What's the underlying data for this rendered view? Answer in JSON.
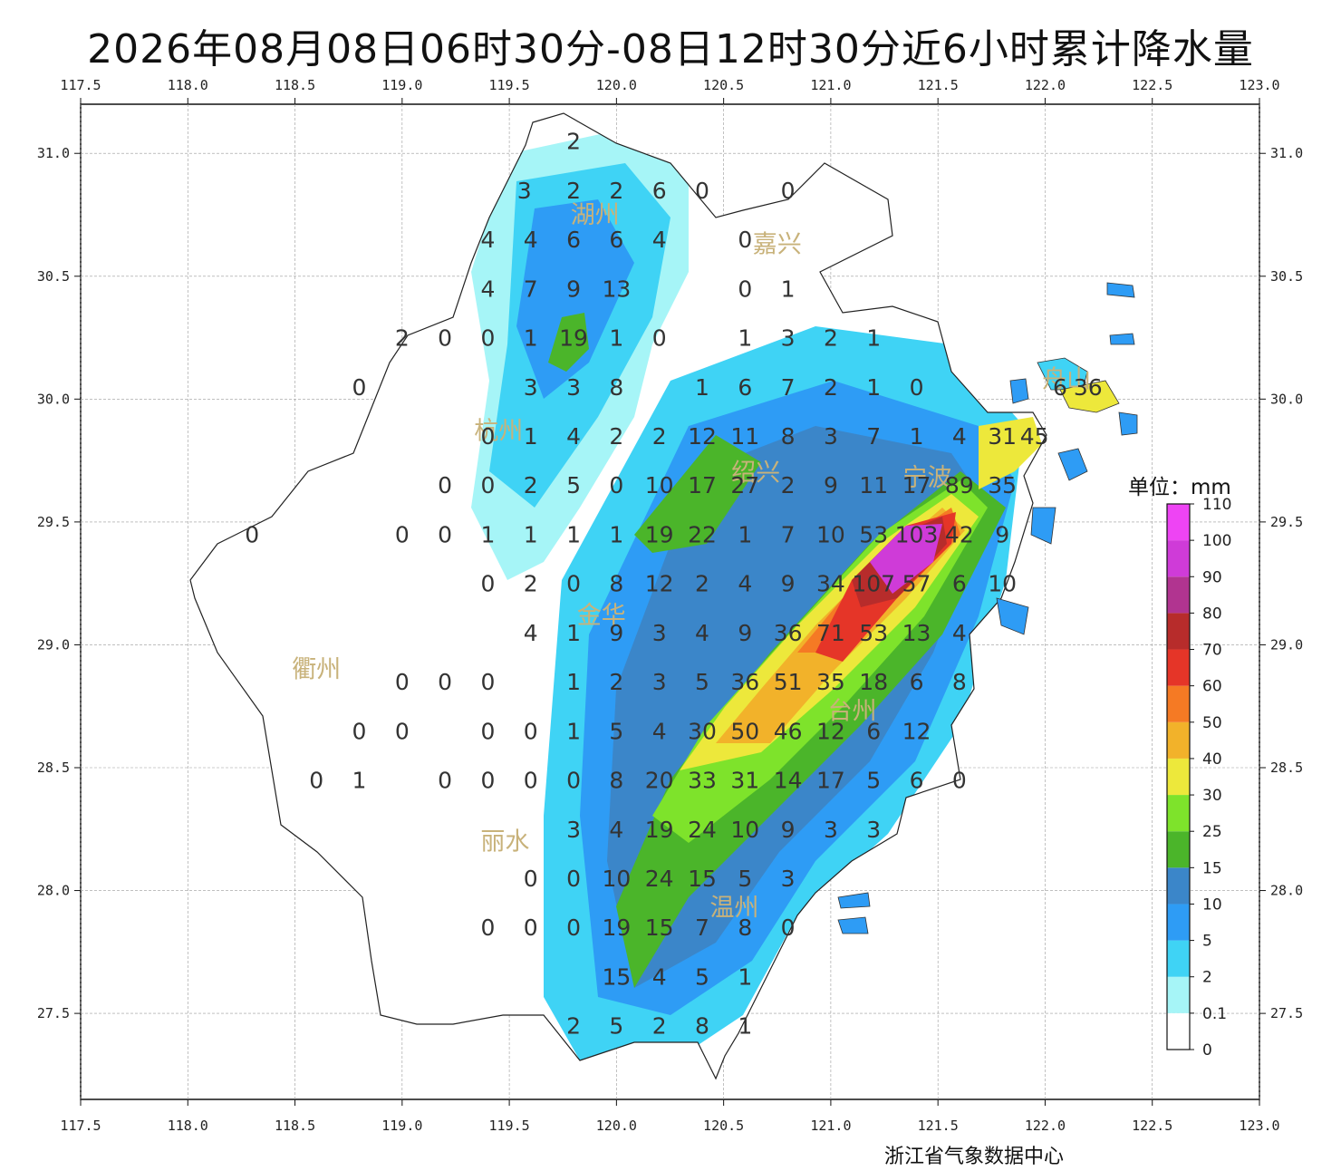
{
  "title": "2026年08月08日06时30分-08日12时30分近6小时累计降水量",
  "lon_ticks": [
    "117.5",
    "118.0",
    "118.5",
    "119.0",
    "119.5",
    "120.0",
    "120.5",
    "121.0",
    "121.5",
    "122.0",
    "122.5",
    "123.0"
  ],
  "lat_ticks": [
    "31.0",
    "30.5",
    "30.0",
    "29.5",
    "29.0",
    "28.5",
    "28.0",
    "27.5"
  ],
  "extent": {
    "lon_min": 117.5,
    "lon_max": 123.0,
    "lat_min": 27.15,
    "lat_max": 31.2
  },
  "cities": [
    {
      "name": "湖州",
      "lon": 119.9,
      "lat": 30.75
    },
    {
      "name": "嘉兴",
      "lon": 120.75,
      "lat": 30.63
    },
    {
      "name": "杭州",
      "lon": 119.45,
      "lat": 29.87
    },
    {
      "name": "绍兴",
      "lon": 120.65,
      "lat": 29.7
    },
    {
      "name": "宁波",
      "lon": 121.45,
      "lat": 29.68
    },
    {
      "name": "舟山",
      "lon": 122.1,
      "lat": 30.08
    },
    {
      "name": "金华",
      "lon": 119.93,
      "lat": 29.12
    },
    {
      "name": "衢州",
      "lon": 118.6,
      "lat": 28.9
    },
    {
      "name": "台州",
      "lon": 121.1,
      "lat": 28.73
    },
    {
      "name": "丽水",
      "lon": 119.48,
      "lat": 28.2
    },
    {
      "name": "温州",
      "lon": 120.55,
      "lat": 27.93
    }
  ],
  "station_values": [
    {
      "lon": 119.8,
      "lat": 31.05,
      "v": "2"
    },
    {
      "lon": 119.57,
      "lat": 30.85,
      "v": "3"
    },
    {
      "lon": 119.8,
      "lat": 30.85,
      "v": "2"
    },
    {
      "lon": 120.0,
      "lat": 30.85,
      "v": "2"
    },
    {
      "lon": 120.2,
      "lat": 30.85,
      "v": "6"
    },
    {
      "lon": 120.4,
      "lat": 30.85,
      "v": "0"
    },
    {
      "lon": 120.8,
      "lat": 30.85,
      "v": "0"
    },
    {
      "lon": 119.4,
      "lat": 30.65,
      "v": "4"
    },
    {
      "lon": 119.6,
      "lat": 30.65,
      "v": "4"
    },
    {
      "lon": 119.8,
      "lat": 30.65,
      "v": "6"
    },
    {
      "lon": 120.0,
      "lat": 30.65,
      "v": "6"
    },
    {
      "lon": 120.2,
      "lat": 30.65,
      "v": "4"
    },
    {
      "lon": 120.6,
      "lat": 30.65,
      "v": "0"
    },
    {
      "lon": 119.4,
      "lat": 30.45,
      "v": "4"
    },
    {
      "lon": 119.6,
      "lat": 30.45,
      "v": "7"
    },
    {
      "lon": 119.8,
      "lat": 30.45,
      "v": "9"
    },
    {
      "lon": 120.0,
      "lat": 30.45,
      "v": "13"
    },
    {
      "lon": 120.6,
      "lat": 30.45,
      "v": "0"
    },
    {
      "lon": 120.8,
      "lat": 30.45,
      "v": "1"
    },
    {
      "lon": 119.0,
      "lat": 30.25,
      "v": "2"
    },
    {
      "lon": 119.2,
      "lat": 30.25,
      "v": "0"
    },
    {
      "lon": 119.4,
      "lat": 30.25,
      "v": "0"
    },
    {
      "lon": 119.6,
      "lat": 30.25,
      "v": "1"
    },
    {
      "lon": 119.8,
      "lat": 30.25,
      "v": "19"
    },
    {
      "lon": 120.0,
      "lat": 30.25,
      "v": "1"
    },
    {
      "lon": 120.2,
      "lat": 30.25,
      "v": "0"
    },
    {
      "lon": 120.6,
      "lat": 30.25,
      "v": "1"
    },
    {
      "lon": 120.8,
      "lat": 30.25,
      "v": "3"
    },
    {
      "lon": 121.0,
      "lat": 30.25,
      "v": "2"
    },
    {
      "lon": 121.2,
      "lat": 30.25,
      "v": "1"
    },
    {
      "lon": 118.8,
      "lat": 30.05,
      "v": "0"
    },
    {
      "lon": 119.6,
      "lat": 30.05,
      "v": "3"
    },
    {
      "lon": 119.8,
      "lat": 30.05,
      "v": "3"
    },
    {
      "lon": 120.0,
      "lat": 30.05,
      "v": "8"
    },
    {
      "lon": 120.4,
      "lat": 30.05,
      "v": "1"
    },
    {
      "lon": 120.6,
      "lat": 30.05,
      "v": "6"
    },
    {
      "lon": 120.8,
      "lat": 30.05,
      "v": "7"
    },
    {
      "lon": 121.0,
      "lat": 30.05,
      "v": "2"
    },
    {
      "lon": 121.2,
      "lat": 30.05,
      "v": "1"
    },
    {
      "lon": 121.4,
      "lat": 30.05,
      "v": "0"
    },
    {
      "lon": 122.07,
      "lat": 30.05,
      "v": "6"
    },
    {
      "lon": 122.2,
      "lat": 30.05,
      "v": "36"
    },
    {
      "lon": 119.4,
      "lat": 29.85,
      "v": "0"
    },
    {
      "lon": 119.6,
      "lat": 29.85,
      "v": "1"
    },
    {
      "lon": 119.8,
      "lat": 29.85,
      "v": "4"
    },
    {
      "lon": 120.0,
      "lat": 29.85,
      "v": "2"
    },
    {
      "lon": 120.2,
      "lat": 29.85,
      "v": "2"
    },
    {
      "lon": 120.4,
      "lat": 29.85,
      "v": "12"
    },
    {
      "lon": 120.6,
      "lat": 29.85,
      "v": "11"
    },
    {
      "lon": 120.8,
      "lat": 29.85,
      "v": "8"
    },
    {
      "lon": 121.0,
      "lat": 29.85,
      "v": "3"
    },
    {
      "lon": 121.2,
      "lat": 29.85,
      "v": "7"
    },
    {
      "lon": 121.4,
      "lat": 29.85,
      "v": "1"
    },
    {
      "lon": 121.6,
      "lat": 29.85,
      "v": "4"
    },
    {
      "lon": 121.8,
      "lat": 29.85,
      "v": "31"
    },
    {
      "lon": 121.95,
      "lat": 29.85,
      "v": "45"
    },
    {
      "lon": 119.2,
      "lat": 29.65,
      "v": "0"
    },
    {
      "lon": 119.4,
      "lat": 29.65,
      "v": "0"
    },
    {
      "lon": 119.6,
      "lat": 29.65,
      "v": "2"
    },
    {
      "lon": 119.8,
      "lat": 29.65,
      "v": "5"
    },
    {
      "lon": 120.0,
      "lat": 29.65,
      "v": "0"
    },
    {
      "lon": 120.2,
      "lat": 29.65,
      "v": "10"
    },
    {
      "lon": 120.4,
      "lat": 29.65,
      "v": "17"
    },
    {
      "lon": 120.6,
      "lat": 29.65,
      "v": "27"
    },
    {
      "lon": 120.8,
      "lat": 29.65,
      "v": "2"
    },
    {
      "lon": 121.0,
      "lat": 29.65,
      "v": "9"
    },
    {
      "lon": 121.2,
      "lat": 29.65,
      "v": "11"
    },
    {
      "lon": 121.4,
      "lat": 29.65,
      "v": "17"
    },
    {
      "lon": 121.6,
      "lat": 29.65,
      "v": "89"
    },
    {
      "lon": 121.8,
      "lat": 29.65,
      "v": "35"
    },
    {
      "lon": 118.3,
      "lat": 29.45,
      "v": "0"
    },
    {
      "lon": 119.0,
      "lat": 29.45,
      "v": "0"
    },
    {
      "lon": 119.2,
      "lat": 29.45,
      "v": "0"
    },
    {
      "lon": 119.4,
      "lat": 29.45,
      "v": "1"
    },
    {
      "lon": 119.6,
      "lat": 29.45,
      "v": "1"
    },
    {
      "lon": 119.8,
      "lat": 29.45,
      "v": "1"
    },
    {
      "lon": 120.0,
      "lat": 29.45,
      "v": "1"
    },
    {
      "lon": 120.2,
      "lat": 29.45,
      "v": "19"
    },
    {
      "lon": 120.4,
      "lat": 29.45,
      "v": "22"
    },
    {
      "lon": 120.6,
      "lat": 29.45,
      "v": "1"
    },
    {
      "lon": 120.8,
      "lat": 29.45,
      "v": "7"
    },
    {
      "lon": 121.0,
      "lat": 29.45,
      "v": "10"
    },
    {
      "lon": 121.2,
      "lat": 29.45,
      "v": "53"
    },
    {
      "lon": 121.4,
      "lat": 29.45,
      "v": "103"
    },
    {
      "lon": 121.6,
      "lat": 29.45,
      "v": "42"
    },
    {
      "lon": 121.8,
      "lat": 29.45,
      "v": "9"
    },
    {
      "lon": 119.4,
      "lat": 29.25,
      "v": "0"
    },
    {
      "lon": 119.6,
      "lat": 29.25,
      "v": "2"
    },
    {
      "lon": 119.8,
      "lat": 29.25,
      "v": "0"
    },
    {
      "lon": 120.0,
      "lat": 29.25,
      "v": "8"
    },
    {
      "lon": 120.2,
      "lat": 29.25,
      "v": "12"
    },
    {
      "lon": 120.4,
      "lat": 29.25,
      "v": "2"
    },
    {
      "lon": 120.6,
      "lat": 29.25,
      "v": "4"
    },
    {
      "lon": 120.8,
      "lat": 29.25,
      "v": "9"
    },
    {
      "lon": 121.0,
      "lat": 29.25,
      "v": "34"
    },
    {
      "lon": 121.2,
      "lat": 29.25,
      "v": "107"
    },
    {
      "lon": 121.4,
      "lat": 29.25,
      "v": "57"
    },
    {
      "lon": 121.6,
      "lat": 29.25,
      "v": "6"
    },
    {
      "lon": 121.8,
      "lat": 29.25,
      "v": "10"
    },
    {
      "lon": 119.6,
      "lat": 29.05,
      "v": "4"
    },
    {
      "lon": 119.8,
      "lat": 29.05,
      "v": "1"
    },
    {
      "lon": 120.0,
      "lat": 29.05,
      "v": "9"
    },
    {
      "lon": 120.2,
      "lat": 29.05,
      "v": "3"
    },
    {
      "lon": 120.4,
      "lat": 29.05,
      "v": "4"
    },
    {
      "lon": 120.6,
      "lat": 29.05,
      "v": "9"
    },
    {
      "lon": 120.8,
      "lat": 29.05,
      "v": "36"
    },
    {
      "lon": 121.0,
      "lat": 29.05,
      "v": "71"
    },
    {
      "lon": 121.2,
      "lat": 29.05,
      "v": "53"
    },
    {
      "lon": 121.4,
      "lat": 29.05,
      "v": "13"
    },
    {
      "lon": 121.6,
      "lat": 29.05,
      "v": "4"
    },
    {
      "lon": 119.0,
      "lat": 28.85,
      "v": "0"
    },
    {
      "lon": 119.2,
      "lat": 28.85,
      "v": "0"
    },
    {
      "lon": 119.4,
      "lat": 28.85,
      "v": "0"
    },
    {
      "lon": 119.8,
      "lat": 28.85,
      "v": "1"
    },
    {
      "lon": 120.0,
      "lat": 28.85,
      "v": "2"
    },
    {
      "lon": 120.2,
      "lat": 28.85,
      "v": "3"
    },
    {
      "lon": 120.4,
      "lat": 28.85,
      "v": "5"
    },
    {
      "lon": 120.6,
      "lat": 28.85,
      "v": "36"
    },
    {
      "lon": 120.8,
      "lat": 28.85,
      "v": "51"
    },
    {
      "lon": 121.0,
      "lat": 28.85,
      "v": "35"
    },
    {
      "lon": 121.2,
      "lat": 28.85,
      "v": "18"
    },
    {
      "lon": 121.4,
      "lat": 28.85,
      "v": "6"
    },
    {
      "lon": 121.6,
      "lat": 28.85,
      "v": "8"
    },
    {
      "lon": 118.8,
      "lat": 28.65,
      "v": "0"
    },
    {
      "lon": 119.0,
      "lat": 28.65,
      "v": "0"
    },
    {
      "lon": 119.4,
      "lat": 28.65,
      "v": "0"
    },
    {
      "lon": 119.6,
      "lat": 28.65,
      "v": "0"
    },
    {
      "lon": 119.8,
      "lat": 28.65,
      "v": "1"
    },
    {
      "lon": 120.0,
      "lat": 28.65,
      "v": "5"
    },
    {
      "lon": 120.2,
      "lat": 28.65,
      "v": "4"
    },
    {
      "lon": 120.4,
      "lat": 28.65,
      "v": "30"
    },
    {
      "lon": 120.6,
      "lat": 28.65,
      "v": "50"
    },
    {
      "lon": 120.8,
      "lat": 28.65,
      "v": "46"
    },
    {
      "lon": 121.0,
      "lat": 28.65,
      "v": "12"
    },
    {
      "lon": 121.2,
      "lat": 28.65,
      "v": "6"
    },
    {
      "lon": 121.4,
      "lat": 28.65,
      "v": "12"
    },
    {
      "lon": 118.6,
      "lat": 28.45,
      "v": "0"
    },
    {
      "lon": 118.8,
      "lat": 28.45,
      "v": "1"
    },
    {
      "lon": 119.2,
      "lat": 28.45,
      "v": "0"
    },
    {
      "lon": 119.4,
      "lat": 28.45,
      "v": "0"
    },
    {
      "lon": 119.6,
      "lat": 28.45,
      "v": "0"
    },
    {
      "lon": 119.8,
      "lat": 28.45,
      "v": "0"
    },
    {
      "lon": 120.0,
      "lat": 28.45,
      "v": "8"
    },
    {
      "lon": 120.2,
      "lat": 28.45,
      "v": "20"
    },
    {
      "lon": 120.4,
      "lat": 28.45,
      "v": "33"
    },
    {
      "lon": 120.6,
      "lat": 28.45,
      "v": "31"
    },
    {
      "lon": 120.8,
      "lat": 28.45,
      "v": "14"
    },
    {
      "lon": 121.0,
      "lat": 28.45,
      "v": "17"
    },
    {
      "lon": 121.2,
      "lat": 28.45,
      "v": "5"
    },
    {
      "lon": 121.4,
      "lat": 28.45,
      "v": "6"
    },
    {
      "lon": 121.6,
      "lat": 28.45,
      "v": "0"
    },
    {
      "lon": 119.8,
      "lat": 28.25,
      "v": "3"
    },
    {
      "lon": 120.0,
      "lat": 28.25,
      "v": "4"
    },
    {
      "lon": 120.2,
      "lat": 28.25,
      "v": "19"
    },
    {
      "lon": 120.4,
      "lat": 28.25,
      "v": "24"
    },
    {
      "lon": 120.6,
      "lat": 28.25,
      "v": "10"
    },
    {
      "lon": 120.8,
      "lat": 28.25,
      "v": "9"
    },
    {
      "lon": 121.0,
      "lat": 28.25,
      "v": "3"
    },
    {
      "lon": 121.2,
      "lat": 28.25,
      "v": "3"
    },
    {
      "lon": 119.6,
      "lat": 28.05,
      "v": "0"
    },
    {
      "lon": 119.8,
      "lat": 28.05,
      "v": "0"
    },
    {
      "lon": 120.0,
      "lat": 28.05,
      "v": "10"
    },
    {
      "lon": 120.2,
      "lat": 28.05,
      "v": "24"
    },
    {
      "lon": 120.4,
      "lat": 28.05,
      "v": "15"
    },
    {
      "lon": 120.6,
      "lat": 28.05,
      "v": "5"
    },
    {
      "lon": 120.8,
      "lat": 28.05,
      "v": "3"
    },
    {
      "lon": 119.4,
      "lat": 27.85,
      "v": "0"
    },
    {
      "lon": 119.6,
      "lat": 27.85,
      "v": "0"
    },
    {
      "lon": 119.8,
      "lat": 27.85,
      "v": "0"
    },
    {
      "lon": 120.0,
      "lat": 27.85,
      "v": "19"
    },
    {
      "lon": 120.2,
      "lat": 27.85,
      "v": "15"
    },
    {
      "lon": 120.4,
      "lat": 27.85,
      "v": "7"
    },
    {
      "lon": 120.6,
      "lat": 27.85,
      "v": "8"
    },
    {
      "lon": 120.8,
      "lat": 27.85,
      "v": "0"
    },
    {
      "lon": 120.0,
      "lat": 27.65,
      "v": "15"
    },
    {
      "lon": 120.2,
      "lat": 27.65,
      "v": "4"
    },
    {
      "lon": 120.4,
      "lat": 27.65,
      "v": "5"
    },
    {
      "lon": 120.6,
      "lat": 27.65,
      "v": "1"
    },
    {
      "lon": 119.8,
      "lat": 27.45,
      "v": "2"
    },
    {
      "lon": 120.0,
      "lat": 27.45,
      "v": "5"
    },
    {
      "lon": 120.2,
      "lat": 27.45,
      "v": "2"
    },
    {
      "lon": 120.4,
      "lat": 27.45,
      "v": "8"
    },
    {
      "lon": 120.6,
      "lat": 27.45,
      "v": "1"
    }
  ],
  "legend": {
    "unit_label": "单位：mm",
    "levels": [
      "0",
      "0.1",
      "2",
      "5",
      "10",
      "15",
      "25",
      "30",
      "40",
      "50",
      "60",
      "70",
      "80",
      "90",
      "100",
      "110"
    ],
    "colors": [
      "#ffffff",
      "#a6f5f7",
      "#3fd3f5",
      "#2e9cf5",
      "#3b86c9",
      "#4bb52a",
      "#7ee32b",
      "#ede83b",
      "#f2b22a",
      "#f57a24",
      "#e53528",
      "#b72c2b",
      "#b13490",
      "#cf3bd8",
      "#ee44f4"
    ]
  },
  "source": "浙江省气象数据中心"
}
